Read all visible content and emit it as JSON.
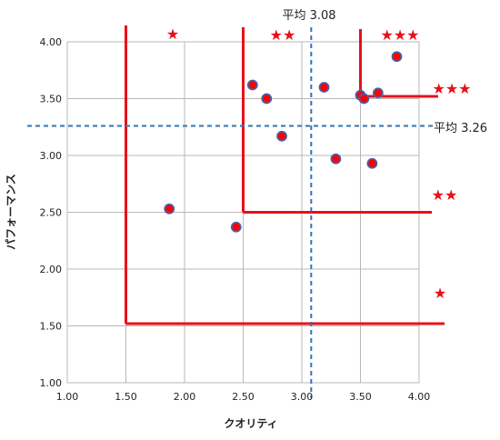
{
  "chart_data": {
    "type": "scatter",
    "title": "",
    "xlabel": "クオリティ",
    "ylabel": "パフォーマンス",
    "xlim": [
      1.0,
      4.0
    ],
    "ylim": [
      1.0,
      4.0
    ],
    "x_ticks": [
      "1.00",
      "1.50",
      "2.00",
      "2.50",
      "3.00",
      "3.50",
      "4.00"
    ],
    "y_ticks": [
      "1.00",
      "1.50",
      "2.00",
      "2.50",
      "3.00",
      "3.50",
      "4.00"
    ],
    "grid": true,
    "series": [
      {
        "points": [
          {
            "x": 1.87,
            "y": 2.53
          },
          {
            "x": 2.44,
            "y": 2.37
          },
          {
            "x": 2.58,
            "y": 3.62
          },
          {
            "x": 2.7,
            "y": 3.5
          },
          {
            "x": 2.83,
            "y": 3.17
          },
          {
            "x": 3.19,
            "y": 3.6
          },
          {
            "x": 3.29,
            "y": 2.97
          },
          {
            "x": 3.5,
            "y": 3.53
          },
          {
            "x": 3.53,
            "y": 3.5
          },
          {
            "x": 3.6,
            "y": 2.93
          },
          {
            "x": 3.65,
            "y": 3.55
          },
          {
            "x": 3.81,
            "y": 3.87
          }
        ]
      }
    ],
    "reference_lines": [
      {
        "axis": "x",
        "value": 3.08,
        "label": "平均 3.08"
      },
      {
        "axis": "y",
        "value": 3.26,
        "label": "平均 3.26"
      }
    ],
    "rank_boundaries": [
      {
        "x": 1.5,
        "y": 1.52,
        "stars": "★"
      },
      {
        "x": 2.5,
        "y": 2.5,
        "stars": "★★"
      },
      {
        "x": 3.5,
        "y": 3.52,
        "stars": "★★★"
      }
    ],
    "star_labels": {
      "top_one": "★",
      "top_two": "★★",
      "top_three": "★★★",
      "right_one": "★",
      "right_two": "★★",
      "right_three": "★★★"
    },
    "colors": {
      "marker_fill": "#ff0000",
      "marker_stroke": "#4a5fa8",
      "boundary": "#e8101a",
      "reference": "#2e75b6",
      "grid": "#b8b8b8",
      "star": "#e8101a"
    }
  }
}
